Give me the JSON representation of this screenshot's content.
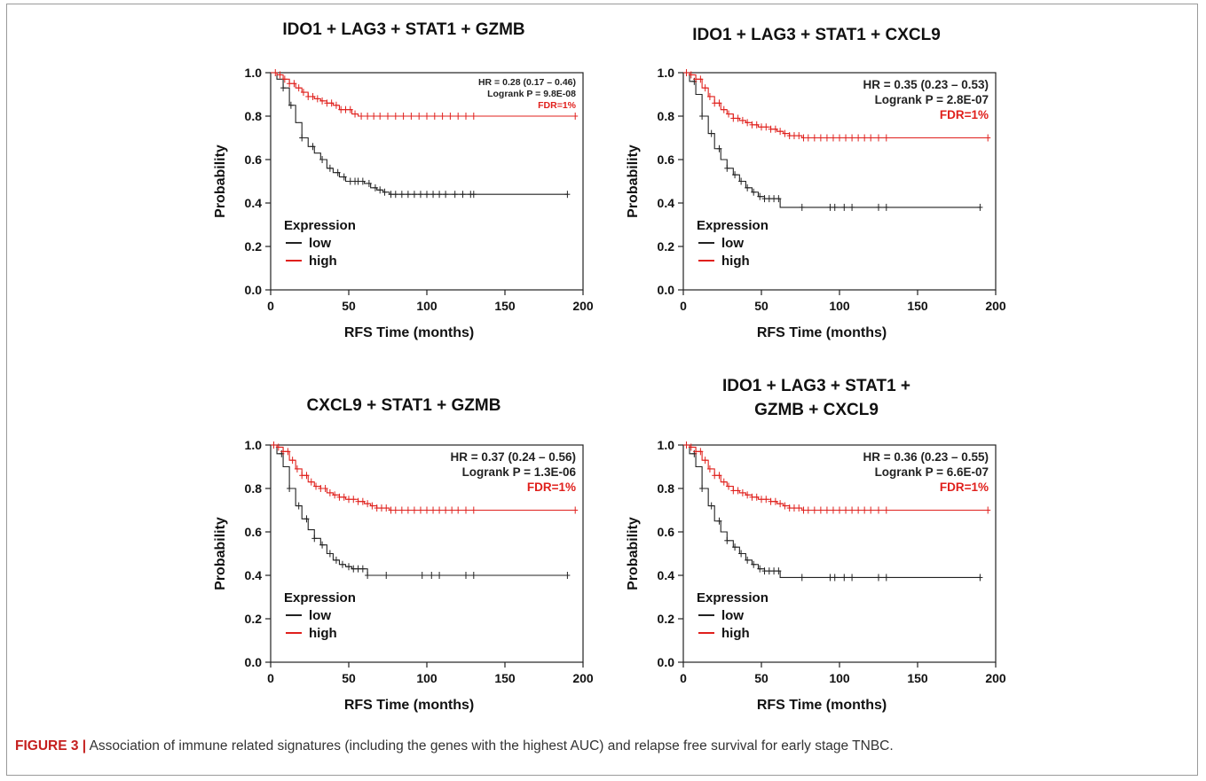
{
  "figure": {
    "caption_label": "FIGURE 3 |",
    "caption_text": " Association of immune related signatures (including the genes with the highest AUC) and relapse free survival for early stage TNBC."
  },
  "colors": {
    "low": "#222222",
    "high": "#e0201c",
    "fdr": "#e0201c"
  },
  "chart_data": [
    {
      "type": "line",
      "title_lines": [
        "IDO1 + LAG3 + STAT1 + GZMB"
      ],
      "xlabel": "RFS Time (months)",
      "ylabel": "Probability",
      "xlim": [
        0,
        200
      ],
      "ylim": [
        0,
        1
      ],
      "xticks": [
        "0",
        "50",
        "100",
        "150",
        "200"
      ],
      "yticks": [
        "0.0",
        "0.2",
        "0.4",
        "0.6",
        "0.8",
        "1.0"
      ],
      "legend": {
        "title": "Expression",
        "placement": "bottom-left",
        "items": [
          "low",
          "high"
        ]
      },
      "annotation": {
        "hr": "HR = 0.28 (0.17 – 0.46)",
        "logrank": "Logrank P = 9.8E-08",
        "fdr": "FDR=1%",
        "size": "small"
      },
      "series": [
        {
          "name": "low",
          "color_key": "low",
          "x": [
            0,
            4,
            8,
            12,
            16,
            20,
            24,
            28,
            32,
            36,
            40,
            44,
            48,
            52,
            56,
            60,
            64,
            68,
            72,
            76,
            80,
            90,
            100,
            110,
            120,
            130,
            150,
            170,
            190
          ],
          "y": [
            1.0,
            0.97,
            0.93,
            0.85,
            0.77,
            0.7,
            0.66,
            0.63,
            0.6,
            0.56,
            0.54,
            0.52,
            0.5,
            0.5,
            0.5,
            0.49,
            0.47,
            0.46,
            0.45,
            0.44,
            0.44,
            0.44,
            0.44,
            0.44,
            0.44,
            0.44,
            0.44,
            0.44,
            0.44
          ],
          "censor_x": [
            8,
            13,
            20,
            27,
            33,
            38,
            43,
            47,
            51,
            54,
            56,
            59,
            63,
            67,
            70,
            73,
            77,
            80,
            84,
            88,
            92,
            96,
            100,
            104,
            108,
            112,
            118,
            123,
            128,
            130,
            190
          ]
        },
        {
          "name": "high",
          "color_key": "high",
          "x": [
            0,
            4,
            8,
            12,
            16,
            20,
            24,
            28,
            32,
            36,
            40,
            44,
            48,
            52,
            56,
            60,
            80,
            100,
            120,
            140,
            160,
            180,
            195
          ],
          "y": [
            1.0,
            0.99,
            0.97,
            0.95,
            0.93,
            0.91,
            0.89,
            0.88,
            0.87,
            0.86,
            0.85,
            0.83,
            0.83,
            0.81,
            0.8,
            0.8,
            0.8,
            0.8,
            0.8,
            0.8,
            0.8,
            0.8,
            0.8
          ],
          "censor_x": [
            3,
            6,
            9,
            12,
            15,
            18,
            21,
            24,
            27,
            30,
            33,
            36,
            39,
            42,
            45,
            48,
            51,
            54,
            58,
            62,
            66,
            70,
            75,
            80,
            85,
            90,
            95,
            100,
            105,
            110,
            115,
            120,
            125,
            130,
            195
          ]
        }
      ]
    },
    {
      "type": "line",
      "title_lines": [
        "IDO1 + LAG3 + STAT1 + CXCL9"
      ],
      "xlabel": "RFS Time (months)",
      "ylabel": "Probability",
      "xlim": [
        0,
        200
      ],
      "ylim": [
        0,
        1
      ],
      "xticks": [
        "0",
        "50",
        "100",
        "150",
        "200"
      ],
      "yticks": [
        "0.0",
        "0.2",
        "0.4",
        "0.6",
        "0.8",
        "1.0"
      ],
      "legend": {
        "title": "Expression",
        "placement": "bottom-left",
        "items": [
          "low",
          "high"
        ]
      },
      "annotation": {
        "hr": "HR = 0.35 (0.23 – 0.53)",
        "logrank": "Logrank P = 2.8E-07",
        "fdr": "FDR=1%",
        "size": "large"
      },
      "series": [
        {
          "name": "low",
          "color_key": "low",
          "x": [
            0,
            4,
            8,
            12,
            16,
            20,
            24,
            28,
            32,
            36,
            40,
            44,
            48,
            52,
            56,
            60,
            62,
            70,
            80,
            100,
            130,
            160,
            190
          ],
          "y": [
            1.0,
            0.96,
            0.9,
            0.8,
            0.72,
            0.65,
            0.6,
            0.56,
            0.53,
            0.5,
            0.47,
            0.45,
            0.43,
            0.42,
            0.42,
            0.42,
            0.38,
            0.38,
            0.38,
            0.38,
            0.38,
            0.38,
            0.38
          ],
          "censor_x": [
            7,
            12,
            18,
            23,
            28,
            33,
            37,
            41,
            45,
            49,
            52,
            55,
            58,
            61,
            76,
            94,
            97,
            103,
            108,
            125,
            130,
            190
          ]
        },
        {
          "name": "high",
          "color_key": "high",
          "x": [
            0,
            4,
            8,
            12,
            16,
            20,
            24,
            28,
            32,
            36,
            40,
            44,
            48,
            52,
            56,
            60,
            64,
            68,
            72,
            76,
            80,
            100,
            130,
            160,
            195
          ],
          "y": [
            1.0,
            0.99,
            0.97,
            0.93,
            0.89,
            0.86,
            0.83,
            0.81,
            0.79,
            0.78,
            0.77,
            0.76,
            0.75,
            0.75,
            0.74,
            0.73,
            0.72,
            0.71,
            0.71,
            0.7,
            0.7,
            0.7,
            0.7,
            0.7,
            0.7
          ],
          "censor_x": [
            2,
            5,
            8,
            11,
            14,
            17,
            20,
            23,
            26,
            29,
            32,
            35,
            38,
            41,
            44,
            47,
            50,
            53,
            56,
            59,
            62,
            65,
            68,
            71,
            74,
            77,
            80,
            84,
            88,
            92,
            96,
            100,
            104,
            108,
            112,
            116,
            120,
            125,
            130,
            195
          ]
        }
      ]
    },
    {
      "type": "line",
      "title_lines": [
        "CXCL9 + STAT1 + GZMB"
      ],
      "xlabel": "RFS Time (months)",
      "ylabel": "Probability",
      "xlim": [
        0,
        200
      ],
      "ylim": [
        0,
        1
      ],
      "xticks": [
        "0",
        "50",
        "100",
        "150",
        "200"
      ],
      "yticks": [
        "0.0",
        "0.2",
        "0.4",
        "0.6",
        "0.8",
        "1.0"
      ],
      "legend": {
        "title": "Expression",
        "placement": "bottom-left",
        "items": [
          "low",
          "high"
        ]
      },
      "annotation": {
        "hr": "HR = 0.37 (0.24 – 0.56)",
        "logrank": "Logrank P = 1.3E-06",
        "fdr": "FDR=1%",
        "size": "large"
      },
      "series": [
        {
          "name": "low",
          "color_key": "low",
          "x": [
            0,
            4,
            8,
            12,
            16,
            20,
            24,
            28,
            32,
            36,
            40,
            44,
            48,
            52,
            56,
            60,
            62,
            70,
            80,
            100,
            130,
            160,
            190
          ],
          "y": [
            1.0,
            0.96,
            0.9,
            0.8,
            0.72,
            0.66,
            0.61,
            0.57,
            0.54,
            0.5,
            0.47,
            0.45,
            0.44,
            0.43,
            0.43,
            0.43,
            0.4,
            0.4,
            0.4,
            0.4,
            0.4,
            0.4,
            0.4
          ],
          "censor_x": [
            7,
            12,
            18,
            23,
            28,
            33,
            38,
            42,
            46,
            50,
            53,
            56,
            59,
            62,
            74,
            97,
            103,
            108,
            125,
            130,
            190
          ]
        },
        {
          "name": "high",
          "color_key": "high",
          "x": [
            0,
            4,
            8,
            12,
            16,
            20,
            24,
            28,
            32,
            36,
            40,
            44,
            48,
            52,
            56,
            60,
            64,
            68,
            72,
            76,
            80,
            100,
            130,
            160,
            195
          ],
          "y": [
            1.0,
            0.99,
            0.97,
            0.93,
            0.89,
            0.86,
            0.83,
            0.81,
            0.8,
            0.78,
            0.77,
            0.76,
            0.75,
            0.75,
            0.74,
            0.73,
            0.72,
            0.71,
            0.71,
            0.7,
            0.7,
            0.7,
            0.7,
            0.7,
            0.7
          ],
          "censor_x": [
            2,
            5,
            8,
            11,
            14,
            17,
            20,
            23,
            26,
            29,
            32,
            35,
            38,
            41,
            44,
            47,
            50,
            53,
            56,
            59,
            62,
            65,
            68,
            71,
            74,
            77,
            80,
            84,
            88,
            92,
            96,
            100,
            104,
            108,
            112,
            116,
            120,
            125,
            130,
            195
          ]
        }
      ]
    },
    {
      "type": "line",
      "title_lines": [
        "IDO1 + LAG3 + STAT1 +",
        "GZMB + CXCL9"
      ],
      "xlabel": "RFS Time (months)",
      "ylabel": "Probability",
      "xlim": [
        0,
        200
      ],
      "ylim": [
        0,
        1
      ],
      "xticks": [
        "0",
        "50",
        "100",
        "150",
        "200"
      ],
      "yticks": [
        "0.0",
        "0.2",
        "0.4",
        "0.6",
        "0.8",
        "1.0"
      ],
      "legend": {
        "title": "Expression",
        "placement": "bottom-left",
        "items": [
          "low",
          "high"
        ]
      },
      "annotation": {
        "hr": "HR = 0.36 (0.23 – 0.55)",
        "logrank": "Logrank P = 6.6E-07",
        "fdr": "FDR=1%",
        "size": "large"
      },
      "series": [
        {
          "name": "low",
          "color_key": "low",
          "x": [
            0,
            4,
            8,
            12,
            16,
            20,
            24,
            28,
            32,
            36,
            40,
            44,
            48,
            52,
            56,
            60,
            62,
            70,
            80,
            100,
            130,
            160,
            190
          ],
          "y": [
            1.0,
            0.96,
            0.9,
            0.8,
            0.72,
            0.65,
            0.6,
            0.56,
            0.53,
            0.5,
            0.47,
            0.45,
            0.43,
            0.42,
            0.42,
            0.42,
            0.39,
            0.39,
            0.39,
            0.39,
            0.39,
            0.39,
            0.39
          ],
          "censor_x": [
            7,
            12,
            18,
            23,
            28,
            33,
            37,
            41,
            45,
            49,
            52,
            55,
            58,
            61,
            76,
            94,
            97,
            103,
            108,
            125,
            130,
            190
          ]
        },
        {
          "name": "high",
          "color_key": "high",
          "x": [
            0,
            4,
            8,
            12,
            16,
            20,
            24,
            28,
            32,
            36,
            40,
            44,
            48,
            52,
            56,
            60,
            64,
            68,
            72,
            76,
            80,
            100,
            130,
            160,
            195
          ],
          "y": [
            1.0,
            0.99,
            0.97,
            0.93,
            0.89,
            0.86,
            0.83,
            0.81,
            0.79,
            0.78,
            0.77,
            0.76,
            0.75,
            0.75,
            0.74,
            0.73,
            0.72,
            0.71,
            0.71,
            0.7,
            0.7,
            0.7,
            0.7,
            0.7,
            0.7
          ],
          "censor_x": [
            2,
            5,
            8,
            11,
            14,
            17,
            20,
            23,
            26,
            29,
            32,
            35,
            38,
            41,
            44,
            47,
            50,
            53,
            56,
            59,
            62,
            65,
            68,
            71,
            74,
            77,
            80,
            84,
            88,
            92,
            96,
            100,
            104,
            108,
            112,
            116,
            120,
            125,
            130,
            195
          ]
        }
      ]
    }
  ]
}
